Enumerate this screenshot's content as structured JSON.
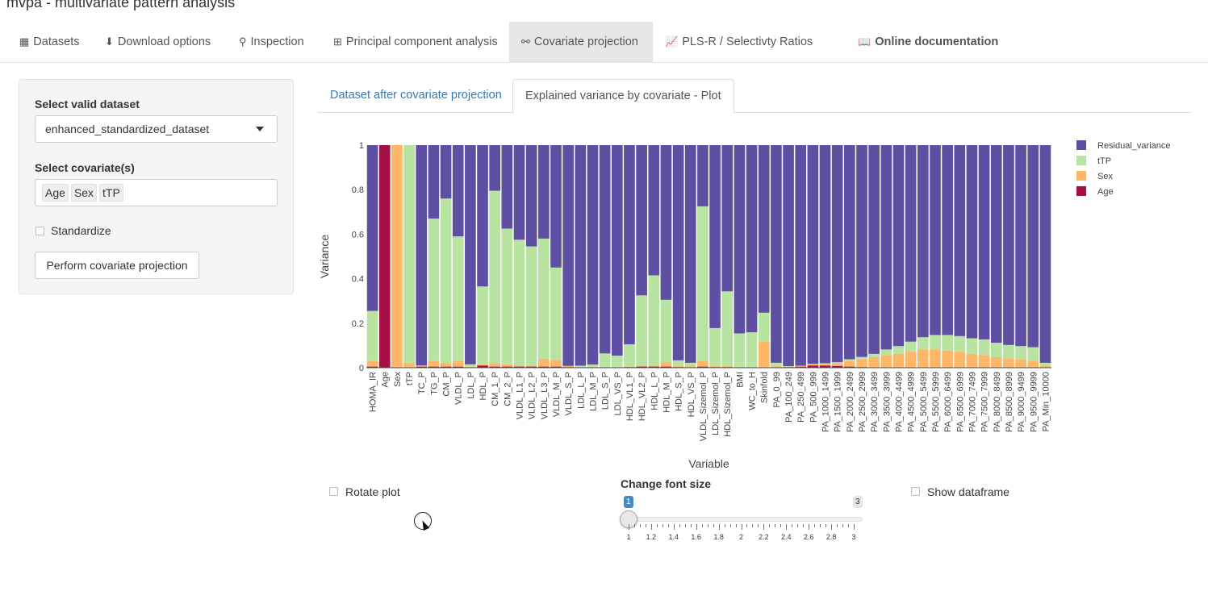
{
  "app_title": "mvpa - multivariate pattern analysis",
  "nav": [
    {
      "label": "Datasets",
      "icon": "archive-icon"
    },
    {
      "label": "Download options",
      "icon": "file-download-icon"
    },
    {
      "label": "Inspection",
      "icon": "search-icon"
    },
    {
      "label": "Principal component analysis",
      "icon": "grid-icon"
    },
    {
      "label": "Covariate projection",
      "icon": "project-diagram-icon"
    },
    {
      "label": "PLS-R / Selectivty Ratios",
      "icon": "chart-line-icon"
    },
    {
      "label": "Online documentation",
      "icon": "book-icon"
    }
  ],
  "sidebar": {
    "dataset_label": "Select valid dataset",
    "dataset_value": "enhanced_standardized_dataset",
    "covariates_label": "Select covariate(s)",
    "covariates": [
      "Age",
      "Sex",
      "tTP"
    ],
    "standardize_label": "Standardize",
    "perform_button": "Perform covariate projection"
  },
  "tabs": {
    "tab1": "Dataset after covariate projection",
    "tab2": "Explained variance by covariate - Plot"
  },
  "controls": {
    "rotate_label": "Rotate plot",
    "font_label": "Change font size",
    "font_min": "1",
    "font_max": "3",
    "show_df_label": "Show dataframe",
    "slider_value": 1,
    "slider_ticks": [
      "1",
      "1.2",
      "1.4",
      "1.6",
      "1.8",
      "2",
      "2.2",
      "2.4",
      "2.6",
      "2.8",
      "3"
    ]
  },
  "chart_data": {
    "type": "bar",
    "stacked": true,
    "xlabel": "Variable",
    "ylabel": "Variance",
    "ylim": [
      0,
      1
    ],
    "yticks": [
      "0",
      "0.2",
      "0.4",
      "0.6",
      "0.8",
      "1"
    ],
    "legend_position": "top-right",
    "colors": {
      "Residual_variance": "#5e4fa2",
      "tTP": "#b8e3a0",
      "Sex": "#fdb766",
      "Age": "#a50f44"
    },
    "categories": [
      "HOMA_IR",
      "Age",
      "Sex",
      "tTP",
      "TC_P",
      "TG_P",
      "CM_P",
      "VLDL_P",
      "LDL_P",
      "HDL_P",
      "CM_1_P",
      "CM_2_P",
      "VLDL_L1_P",
      "VLDL_L2_P",
      "VLDL_L3_P",
      "VLDL_M_P",
      "VLDL_S_P",
      "LDL_L_P",
      "LDL_M_P",
      "LDL_S_P",
      "LDL_VS_P",
      "HDL_VL1_P",
      "HDL_VL2_P",
      "HDL_L_P",
      "HDL_M_P",
      "HDL_S_P",
      "HDL_VS_P",
      "VLDL_Sizemol_P",
      "LDL_Sizemol_P",
      "HDL_Sizemol_P",
      "BMI",
      "WC_to_H",
      "Skinfold",
      "PA_0_99",
      "PA_100_249",
      "PA_250_499",
      "PA_500_999",
      "PA_1000_1499",
      "PA_1500_1999",
      "PA_2000_2499",
      "PA_2500_2999",
      "PA_3000_3499",
      "PA_3500_3999",
      "PA_4000_4499",
      "PA_4500_4999",
      "PA_5000_5499",
      "PA_5500_5999",
      "PA_6000_6499",
      "PA_6500_6999",
      "PA_7000_7499",
      "PA_7500_7999",
      "PA_8000_8499",
      "PA_8500_8999",
      "PA_9000_9499",
      "PA_9500_9999",
      "PA_Min_10000"
    ],
    "series": [
      {
        "name": "Age",
        "values": [
          0.005,
          1.0,
          0,
          0,
          0.005,
          0.005,
          0.005,
          0.005,
          0.002,
          0.01,
          0.005,
          0.005,
          0.005,
          0.005,
          0.005,
          0.005,
          0.003,
          0.002,
          0.002,
          0.002,
          0.002,
          0.003,
          0.005,
          0.005,
          0.005,
          0.003,
          0.002,
          0.005,
          0.003,
          0.003,
          0.002,
          0.002,
          0.002,
          0.002,
          0.003,
          0.005,
          0.01,
          0.01,
          0.008,
          0.005,
          0.003,
          0.002,
          0.002,
          0.002,
          0.002,
          0.002,
          0.002,
          0.002,
          0.002,
          0.002,
          0.002,
          0.002,
          0.002,
          0.002,
          0.002,
          0.002
        ]
      },
      {
        "name": "Sex",
        "values": [
          0.025,
          0,
          1.0,
          0.02,
          0.005,
          0.025,
          0.015,
          0.025,
          0.003,
          0.005,
          0.015,
          0.01,
          0.005,
          0.005,
          0.035,
          0.03,
          0.005,
          0.002,
          0.002,
          0.002,
          0.002,
          0.002,
          0.005,
          0.005,
          0.02,
          0.005,
          0.005,
          0.025,
          0.005,
          0.005,
          0.002,
          0.002,
          0.115,
          0.005,
          0.002,
          0.002,
          0.005,
          0.005,
          0.012,
          0.025,
          0.035,
          0.045,
          0.055,
          0.06,
          0.07,
          0.08,
          0.08,
          0.075,
          0.07,
          0.06,
          0.055,
          0.045,
          0.04,
          0.035,
          0.03,
          0.005
        ]
      },
      {
        "name": "tTP",
        "values": [
          0.225,
          0,
          0,
          0.98,
          0,
          0.64,
          0.74,
          0.56,
          0.01,
          0.35,
          0.775,
          0.61,
          0.565,
          0.535,
          0.54,
          0.415,
          0,
          0.005,
          0.01,
          0.06,
          0.05,
          0.1,
          0.315,
          0.405,
          0.28,
          0.025,
          0.015,
          0.695,
          0.17,
          0.335,
          0.15,
          0.155,
          0.13,
          0.015,
          0.002,
          0.002,
          0.002,
          0.005,
          0.005,
          0.008,
          0.01,
          0.015,
          0.025,
          0.035,
          0.045,
          0.055,
          0.065,
          0.07,
          0.07,
          0.07,
          0.07,
          0.065,
          0.06,
          0.06,
          0.06,
          0.015
        ]
      },
      {
        "name": "Residual_variance",
        "values": [
          0.745,
          0,
          0,
          0,
          0.99,
          0.33,
          0.24,
          0.41,
          0.985,
          0.635,
          0.205,
          0.375,
          0.425,
          0.455,
          0.42,
          0.55,
          0.992,
          0.991,
          0.986,
          0.936,
          0.946,
          0.895,
          0.675,
          0.585,
          0.695,
          0.967,
          0.978,
          0.275,
          0.822,
          0.657,
          0.846,
          0.841,
          0.753,
          0.978,
          0.993,
          0.991,
          0.983,
          0.98,
          0.975,
          0.962,
          0.952,
          0.938,
          0.918,
          0.903,
          0.883,
          0.863,
          0.853,
          0.853,
          0.858,
          0.868,
          0.873,
          0.888,
          0.898,
          0.903,
          0.908,
          0.978
        ]
      }
    ]
  }
}
